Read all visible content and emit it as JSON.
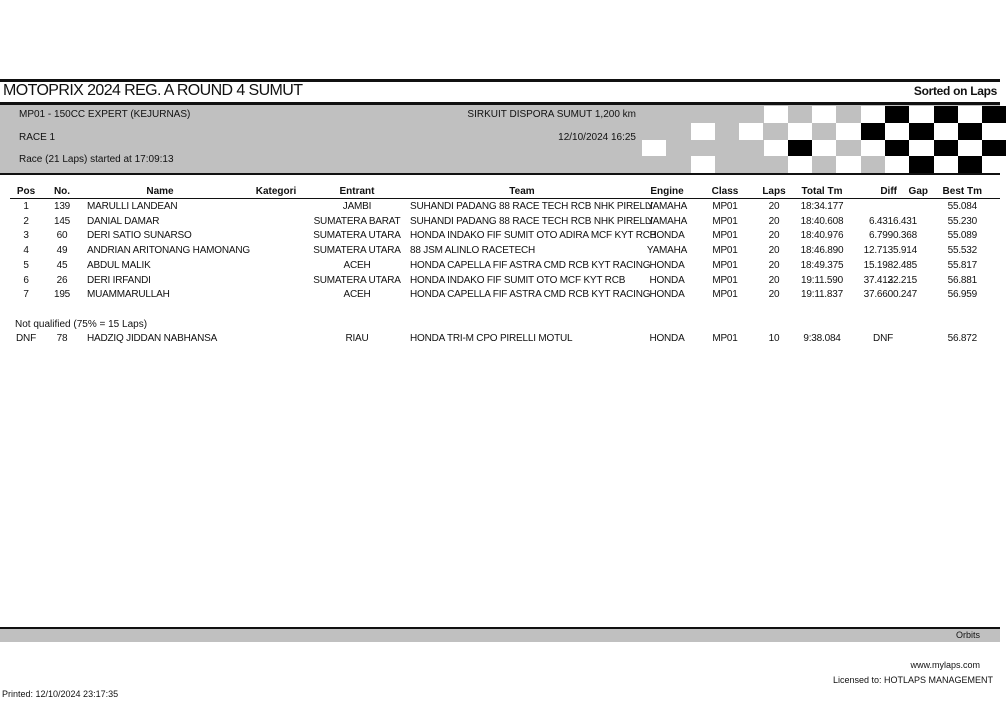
{
  "header": {
    "title": "MOTOPRIX 2024 REG. A ROUND 4 SUMUT",
    "sort": "Sorted on Laps",
    "class_name": "MP01 - 150CC EXPERT (KEJURNAS)",
    "circuit": "SIRKUIT DISPORA SUMUT 1,200 km",
    "race": "RACE 1",
    "datetime": "12/10/2024 16:25",
    "race_info": "Race (21 Laps) started at 17:09:13"
  },
  "columns": {
    "pos": "Pos",
    "no": "No.",
    "name": "Name",
    "kategori": "Kategori",
    "entrant": "Entrant",
    "team": "Team",
    "engine": "Engine",
    "class": "Class",
    "laps": "Laps",
    "total": "Total Tm",
    "diff": "Diff",
    "gap": "Gap",
    "best": "Best Tm"
  },
  "results": [
    {
      "pos": "1",
      "no": "139",
      "name": "MARULLI LANDEAN",
      "kategori": "",
      "entrant": "JAMBI",
      "team": "SUHANDI PADANG 88 RACE TECH RCB NHK PIRELLI",
      "engine": "YAMAHA",
      "class": "MP01",
      "laps": "20",
      "total": "18:34.177",
      "diff": "",
      "gap": "",
      "best": "55.084"
    },
    {
      "pos": "2",
      "no": "145",
      "name": "DANIAL DAMAR",
      "kategori": "",
      "entrant": "SUMATERA BARAT",
      "team": "SUHANDI PADANG 88 RACE TECH RCB NHK PIRELLI",
      "engine": "YAMAHA",
      "class": "MP01",
      "laps": "20",
      "total": "18:40.608",
      "diff": "6.431",
      "gap": "6.431",
      "best": "55.230"
    },
    {
      "pos": "3",
      "no": "60",
      "name": "DERI SATIO SUNARSO",
      "kategori": "",
      "entrant": "SUMATERA UTARA",
      "team": "HONDA INDAKO FIF SUMIT OTO ADIRA MCF KYT RCB",
      "engine": "HONDA",
      "class": "MP01",
      "laps": "20",
      "total": "18:40.976",
      "diff": "6.799",
      "gap": "0.368",
      "best": "55.089"
    },
    {
      "pos": "4",
      "no": "49",
      "name": "ANDRIAN ARITONANG HAMONANG",
      "kategori": "",
      "entrant": "SUMATERA UTARA",
      "team": "88 JSM ALINLO RACETECH",
      "engine": "YAMAHA",
      "class": "MP01",
      "laps": "20",
      "total": "18:46.890",
      "diff": "12.713",
      "gap": "5.914",
      "best": "55.532"
    },
    {
      "pos": "5",
      "no": "45",
      "name": "ABDUL MALIK",
      "kategori": "",
      "entrant": "ACEH",
      "team": "HONDA CAPELLA FIF ASTRA CMD RCB KYT RACING",
      "engine": "HONDA",
      "class": "MP01",
      "laps": "20",
      "total": "18:49.375",
      "diff": "15.198",
      "gap": "2.485",
      "best": "55.817"
    },
    {
      "pos": "6",
      "no": "26",
      "name": "DERI IRFANDI",
      "kategori": "",
      "entrant": "SUMATERA UTARA",
      "team": "HONDA INDAKO FIF SUMIT OTO MCF KYT RCB",
      "engine": "HONDA",
      "class": "MP01",
      "laps": "20",
      "total": "19:11.590",
      "diff": "37.413",
      "gap": "22.215",
      "best": "56.881"
    },
    {
      "pos": "7",
      "no": "195",
      "name": "MUAMMARULLAH",
      "kategori": "",
      "entrant": "ACEH",
      "team": "HONDA CAPELLA FIF ASTRA CMD RCB KYT RACING",
      "engine": "HONDA",
      "class": "MP01",
      "laps": "20",
      "total": "19:11.837",
      "diff": "37.660",
      "gap": "0.247",
      "best": "56.959"
    }
  ],
  "not_qualified_label": "Not qualified (75% = 15 Laps)",
  "not_qualified": [
    {
      "pos": "DNF",
      "no": "78",
      "name": "HADZIQ JIDDAN NABHANSA",
      "kategori": "",
      "entrant": "RIAU",
      "team": "HONDA TRI-M CPO PIRELLI MOTUL",
      "engine": "HONDA",
      "class": "MP01",
      "laps": "10",
      "total": "9:38.084",
      "diff": "DNF",
      "gap": "",
      "best": "56.872"
    }
  ],
  "footer": {
    "brand": "Orbits",
    "website": "www.mylaps.com",
    "licensed": "Licensed to:  HOTLAPS MANAGEMENT",
    "printed": "Printed: 12/10/2024 23:17:35"
  },
  "checker_flag": {
    "colors": {
      "white": "#ffffff",
      "black": "#000000",
      "grey": "#c0c0c0"
    },
    "rows": [
      "-----WGWGWBWBWB",
      "--W-WGWGWBWBWBW",
      "W----WBWGWBWBWB",
      "--W---WGWGWBWBW"
    ]
  }
}
